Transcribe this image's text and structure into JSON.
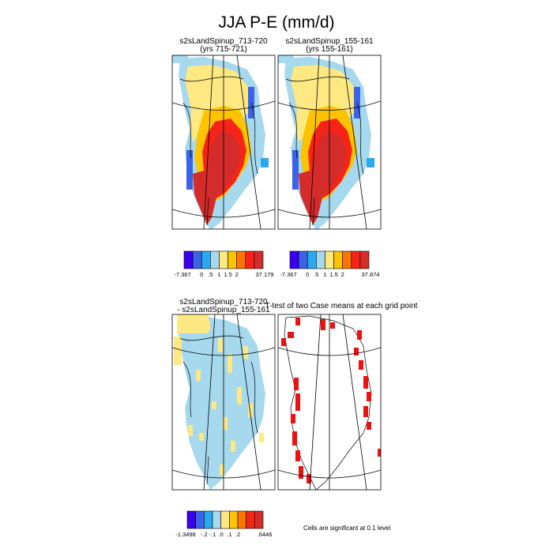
{
  "figure": {
    "title": "JJA P-E (mm/d)",
    "note": "Cells are significant at 0.1 level"
  },
  "panels": {
    "p1": {
      "title": "s2sLandSpinup_713-720",
      "subtitle": "(yrs 715-721)"
    },
    "p2": {
      "title": "s2sLandSpinup_155-161",
      "subtitle": "(yrs 155-161)"
    },
    "p3": {
      "title": "s2sLandSpinup_713-720",
      "subtitle": "- s2sLandSpinup_155-161"
    },
    "p4": {
      "title": "T-test of two Case means at each grid point"
    }
  },
  "colorbars": {
    "cb1": {
      "colors": [
        "#3a00f0",
        "#3c62e8",
        "#29aaf0",
        "#a6d8ee",
        "#fde882",
        "#fec300",
        "#fd7500",
        "#f62418",
        "#d42b2b"
      ],
      "labels": [
        "-7.367",
        "0",
        ".5",
        "1",
        "1.5",
        "2",
        "37.179"
      ]
    },
    "cb2": {
      "colors": [
        "#3a00f0",
        "#3c62e8",
        "#29aaf0",
        "#a6d8ee",
        "#fde882",
        "#fec300",
        "#fd7500",
        "#f62418",
        "#d42b2b"
      ],
      "labels": [
        "-7.367",
        "0",
        ".5",
        "1",
        "1.5",
        "2",
        "37.874"
      ]
    },
    "cb3": {
      "colors": [
        "#3a00f0",
        "#3c62e8",
        "#29aaf0",
        "#a6d8ee",
        "#fde882",
        "#fec300",
        "#fd7500",
        "#f62418",
        "#d42b2b"
      ],
      "labels": [
        "-1.3498",
        "-.2",
        "-.1",
        ".0",
        ".1",
        ".2",
        ".6446"
      ]
    }
  },
  "chart_data": [
    {
      "type": "heatmap",
      "title": "s2sLandSpinup_713-720",
      "subtitle": "(yrs 715-721)",
      "color_levels": [
        "-7.367",
        "0",
        ".5",
        "1",
        "1.5",
        "2",
        "37.179"
      ],
      "region": "Greenland"
    },
    {
      "type": "heatmap",
      "title": "s2sLandSpinup_155-161",
      "subtitle": "(yrs 155-161)",
      "color_levels": [
        "-7.367",
        "0",
        ".5",
        "1",
        "1.5",
        "2",
        "37.874"
      ],
      "region": "Greenland"
    },
    {
      "type": "heatmap",
      "title": "s2sLandSpinup_713-720",
      "subtitle": "- s2sLandSpinup_155-161",
      "color_levels": [
        "-1.3498",
        "-.2",
        "-.1",
        ".0",
        ".1",
        ".2",
        ".6446"
      ],
      "region": "Greenland"
    },
    {
      "type": "heatmap",
      "title": "T-test of two Case means at each grid point",
      "note": "Cells are significant at 0.1 level",
      "region": "Greenland"
    }
  ]
}
